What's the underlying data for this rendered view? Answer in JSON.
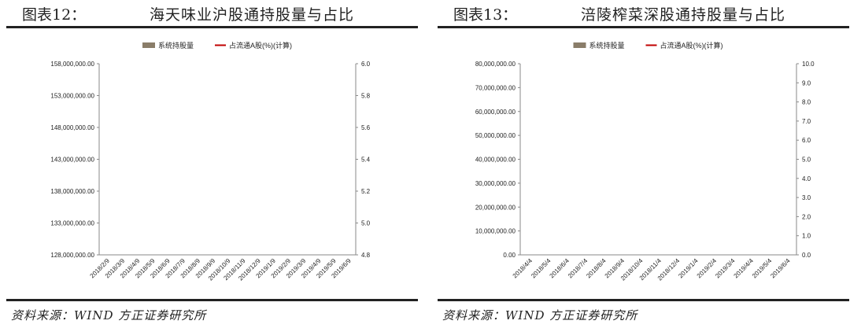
{
  "panels": [
    {
      "figure_label": "图表12：",
      "figure_title": "海天味业沪股通持股量与占比",
      "source": "资料来源：WIND 方正证券研究所"
    },
    {
      "figure_label": "图表13：",
      "figure_title": "涪陵榨菜深股通持股量与占比",
      "source": "资料来源：WIND 方正证券研究所"
    }
  ],
  "colors": {
    "bar": "#8a7d69",
    "line": "#c00000"
  },
  "chart_data": [
    {
      "type": "bar",
      "legend": [
        "系统持股量",
        "占流通A股(%)(计算)"
      ],
      "x_tick_labels": [
        "2018/2/9",
        "2018/3/9",
        "2018/4/9",
        "2018/5/9",
        "2018/6/9",
        "2018/7/9",
        "2018/8/9",
        "2018/9/9",
        "2018/10/9",
        "2018/11/9",
        "2018/12/9",
        "2019/1/9",
        "2019/2/9",
        "2019/3/9",
        "2019/4/9",
        "2019/5/9",
        "2019/6/9"
      ],
      "y_left": {
        "min": 128000000,
        "max": 158000000,
        "ticks": [
          "128,000,000.00",
          "133,000,000.00",
          "138,000,000.00",
          "143,000,000.00",
          "148,000,000.00",
          "153,000,000.00",
          "158,000,000.00"
        ]
      },
      "y_right": {
        "min": 4.8,
        "max": 6.0,
        "ticks": [
          "4.8",
          "5.0",
          "5.2",
          "5.4",
          "5.6",
          "5.8",
          "6.0"
        ]
      }
    },
    {
      "type": "bar",
      "legend": [
        "系统持股量",
        "占流通A股(%)(计算)"
      ],
      "x_tick_labels": [
        "2018/4/4",
        "2018/5/4",
        "2018/6/4",
        "2018/7/4",
        "2018/8/4",
        "2018/9/4",
        "2018/10/4",
        "2018/11/4",
        "2018/12/4",
        "2019/1/4",
        "2019/2/4",
        "2019/3/4",
        "2019/4/4",
        "2019/5/4",
        "2019/6/4"
      ],
      "y_left": {
        "min": 0,
        "max": 80000000,
        "ticks": [
          "0.00",
          "10,000,000.00",
          "20,000,000.00",
          "30,000,000.00",
          "40,000,000.00",
          "50,000,000.00",
          "60,000,000.00",
          "70,000,000.00",
          "80,000,000.00"
        ]
      },
      "y_right": {
        "min": 0,
        "max": 10,
        "ticks": [
          "0.0",
          "1.0",
          "2.0",
          "3.0",
          "4.0",
          "5.0",
          "6.0",
          "7.0",
          "8.0",
          "9.0",
          "10.0"
        ]
      }
    }
  ]
}
